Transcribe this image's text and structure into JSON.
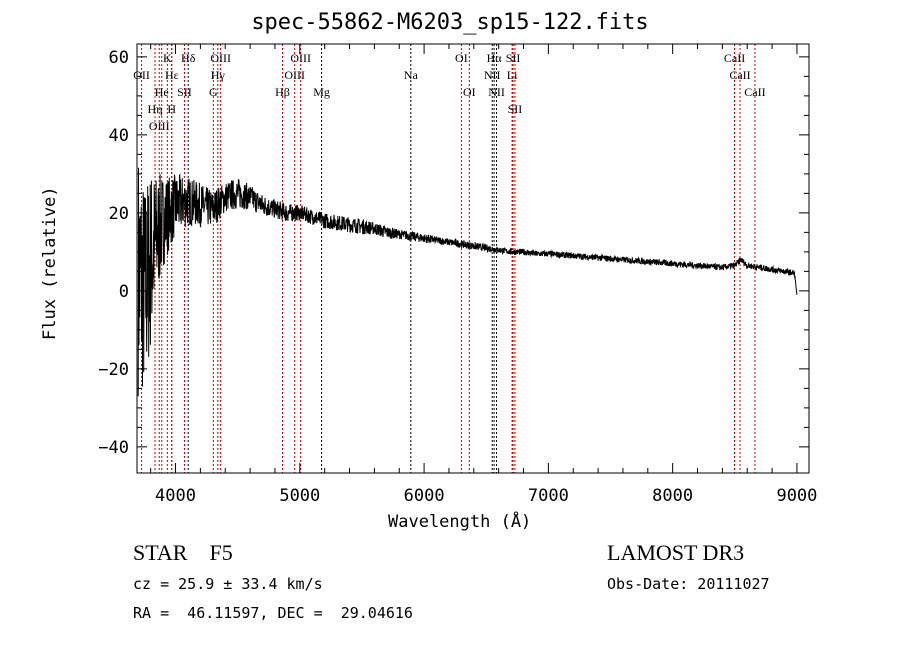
{
  "chart_data": {
    "type": "line",
    "title": "spec-55862-M6203_sp15-122.fits",
    "xlabel": "Wavelength (Å)",
    "ylabel": "Flux (relative)",
    "xlim": [
      3690,
      9097
    ],
    "ylim": [
      -46.7,
      63.3
    ],
    "xticks": [
      4000,
      5000,
      6000,
      7000,
      8000,
      9000
    ],
    "yticks": [
      -40,
      -20,
      0,
      20,
      40,
      60
    ],
    "grid": false,
    "series": [
      {
        "name": "spectrum",
        "color": "#000000",
        "x": [
          3700,
          3750,
          3800,
          3850,
          3900,
          3950,
          4000,
          4100,
          4200,
          4300,
          4400,
          4500,
          4600,
          4700,
          4800,
          4900,
          5000,
          5100,
          5200,
          5300,
          5400,
          5500,
          5600,
          5700,
          5800,
          5900,
          6000,
          6100,
          6200,
          6300,
          6400,
          6500,
          6600,
          6700,
          6800,
          6900,
          7000,
          7200,
          7400,
          7600,
          7800,
          8000,
          8200,
          8400,
          8500,
          8550,
          8600,
          8700,
          8800,
          8900,
          8980,
          9000
        ],
        "y": [
          5,
          0,
          8,
          14,
          18,
          20,
          22,
          23,
          22,
          21,
          24,
          25,
          24,
          22,
          21,
          20,
          20,
          19,
          18,
          17.5,
          17,
          16.5,
          16,
          15,
          14.5,
          14,
          13.5,
          13,
          12.5,
          12,
          11.5,
          11,
          10.5,
          10,
          10,
          9.5,
          9.5,
          9,
          8.5,
          8,
          7.5,
          7,
          6.5,
          6,
          6.5,
          8,
          6.5,
          6,
          5.5,
          5,
          4.5,
          -1
        ],
        "noise": [
          40,
          35,
          30,
          20,
          15,
          12,
          10,
          8,
          7,
          6,
          5,
          5,
          4,
          3.5,
          3,
          3,
          2.5,
          2.5,
          2.5,
          2.5,
          2.5,
          2.5,
          2,
          2,
          1.5,
          1.5,
          1.5,
          1.2,
          1.2,
          1.2,
          1.2,
          1.2,
          1,
          1,
          1,
          1,
          1,
          1,
          1,
          1,
          1,
          1,
          1,
          1,
          1,
          1,
          1,
          1,
          1,
          1,
          1,
          0
        ]
      }
    ],
    "lines": [
      {
        "label": "Hε",
        "wl": 3970,
        "row": 0,
        "color": "#c00000"
      },
      {
        "label": "K",
        "wl": 3934,
        "row": 0,
        "color": "#c00000"
      },
      {
        "label": "Hδ",
        "wl": 4102,
        "row": 0,
        "color": "#000000"
      },
      {
        "label": "OIII",
        "wl": 4363,
        "row": 0,
        "color": "#c00000"
      },
      {
        "label": "OIII",
        "wl": 5007,
        "row": 0,
        "color": "#c00000"
      },
      {
        "label": "OI",
        "wl": 6300,
        "row": 0,
        "color": "#c00000"
      },
      {
        "label": "Hα",
        "wl": 6563,
        "row": 0,
        "color": "#000000"
      },
      {
        "label": "SII",
        "wl": 6716,
        "row": 0,
        "color": "#c00000"
      },
      {
        "label": "CaII",
        "wl": 8498,
        "row": 0,
        "color": "#c00000"
      },
      {
        "label": "OII",
        "wl": 3727,
        "row": 1,
        "color": "#c00000"
      },
      {
        "label": "He",
        "wl": 3889,
        "row": 1,
        "color": "#c00000"
      },
      {
        "label": "SII",
        "wl": 4072,
        "row": 1,
        "color": "#c00000"
      },
      {
        "label": "Hγ",
        "wl": 4340,
        "row": 1,
        "color": "#c00000"
      },
      {
        "label": "OIII",
        "wl": 4959,
        "row": 1,
        "color": "#c00000"
      },
      {
        "label": "Na",
        "wl": 5893,
        "row": 1,
        "color": "#000000"
      },
      {
        "label": "NII",
        "wl": 6548,
        "row": 1,
        "color": "#000000"
      },
      {
        "label": "Li",
        "wl": 6708,
        "row": 1,
        "color": "#c00000"
      },
      {
        "label": "CaII",
        "wl": 8542,
        "row": 1,
        "color": "#c00000"
      },
      {
        "label": "OIII",
        "wl": 3869,
        "row": 2,
        "color": "#c00000"
      },
      {
        "label": "Hη",
        "wl": 3835,
        "row": 2,
        "color": "#c00000"
      },
      {
        "label": "H",
        "wl": 3969,
        "row": 2,
        "color": "#c00000"
      },
      {
        "label": "G",
        "wl": 4304,
        "row": 2,
        "color": "#c00000"
      },
      {
        "label": "Hβ",
        "wl": 4861,
        "row": 2,
        "color": "#c00000"
      },
      {
        "label": "Mg",
        "wl": 5175,
        "row": 2,
        "color": "#000000"
      },
      {
        "label": "OI",
        "wl": 6364,
        "row": 2,
        "color": "#c00000"
      },
      {
        "label": "NII",
        "wl": 6583,
        "row": 2,
        "color": "#000000"
      },
      {
        "label": "SII",
        "wl": 6731,
        "row": 2,
        "color": "#c00000"
      },
      {
        "label": "CaII",
        "wl": 8662,
        "row": 2,
        "color": "#c00000"
      }
    ]
  },
  "info": {
    "object": "STAR    F5",
    "cz": "cz = 25.9 ± 33.4 km/s",
    "coords": "RA =  46.11597, DEC =  29.04616",
    "survey": "LAMOST DR3",
    "obs_date": "Obs-Date: 20111027"
  }
}
